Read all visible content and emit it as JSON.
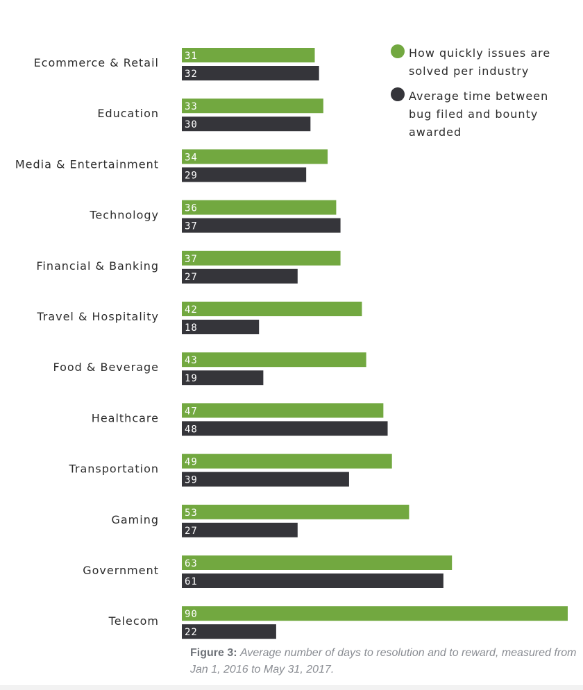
{
  "chart_data": {
    "type": "bar",
    "orientation": "horizontal",
    "categories": [
      "Ecommerce & Retail",
      "Education",
      "Media & Entertainment",
      "Technology",
      "Financial & Banking",
      "Travel & Hospitality",
      "Food & Beverage",
      "Healthcare",
      "Transportation",
      "Gaming",
      "Government",
      "Telecom"
    ],
    "series": [
      {
        "name": "How quickly issues are solved per industry",
        "color": "#72a840",
        "values": [
          31,
          33,
          34,
          36,
          37,
          42,
          43,
          47,
          49,
          53,
          63,
          90
        ]
      },
      {
        "name": "Average time between bug filed and bounty awarded",
        "color": "#35353a",
        "values": [
          32,
          30,
          29,
          37,
          27,
          18,
          19,
          48,
          39,
          27,
          61,
          22
        ]
      }
    ],
    "xlim": [
      0,
      90
    ],
    "data_labels": "inside-start",
    "legend": "top-right",
    "grid": false
  },
  "caption": {
    "label": "Figure 3:",
    "text": "Average number of days to resolution and to reward, measured from Jan 1, 2016 to May 31, 2017."
  }
}
